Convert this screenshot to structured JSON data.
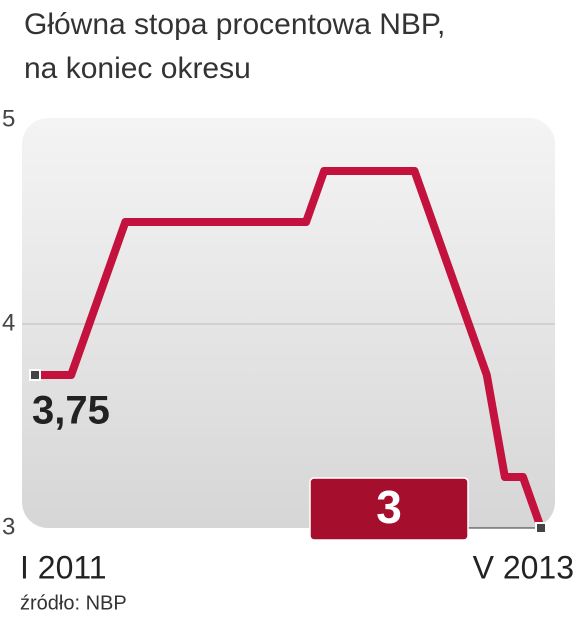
{
  "chart_data": {
    "type": "line",
    "title_lines": [
      "Główna stopa procentowa NBP,",
      "na koniec okresu"
    ],
    "categories": [
      "I 2011",
      null,
      null,
      null,
      null,
      null,
      null,
      null,
      null,
      null,
      null,
      null,
      null,
      null,
      null,
      null,
      null,
      null,
      null,
      null,
      null,
      null,
      null,
      null,
      null,
      null,
      null,
      null,
      "V 2013"
    ],
    "series": [
      {
        "color": "#c4123e",
        "values": [
          3.75,
          3.75,
          3.75,
          4.0,
          4.25,
          4.5,
          4.5,
          4.5,
          4.5,
          4.5,
          4.5,
          4.5,
          4.5,
          4.5,
          4.5,
          4.5,
          4.75,
          4.75,
          4.75,
          4.75,
          4.75,
          4.75,
          4.5,
          4.25,
          4.0,
          3.75,
          3.25,
          3.25,
          3.0
        ],
        "value_labels": [
          "3,75",
          null,
          null,
          null,
          null,
          null,
          null,
          null,
          null,
          null,
          null,
          null,
          null,
          null,
          null,
          null,
          null,
          null,
          null,
          null,
          null,
          null,
          null,
          null,
          null,
          null,
          null,
          null,
          "3"
        ]
      }
    ],
    "ylim": [
      3,
      5
    ],
    "yticks": [
      3,
      4,
      5
    ],
    "grid": true,
    "source": "źródło: NBP"
  }
}
